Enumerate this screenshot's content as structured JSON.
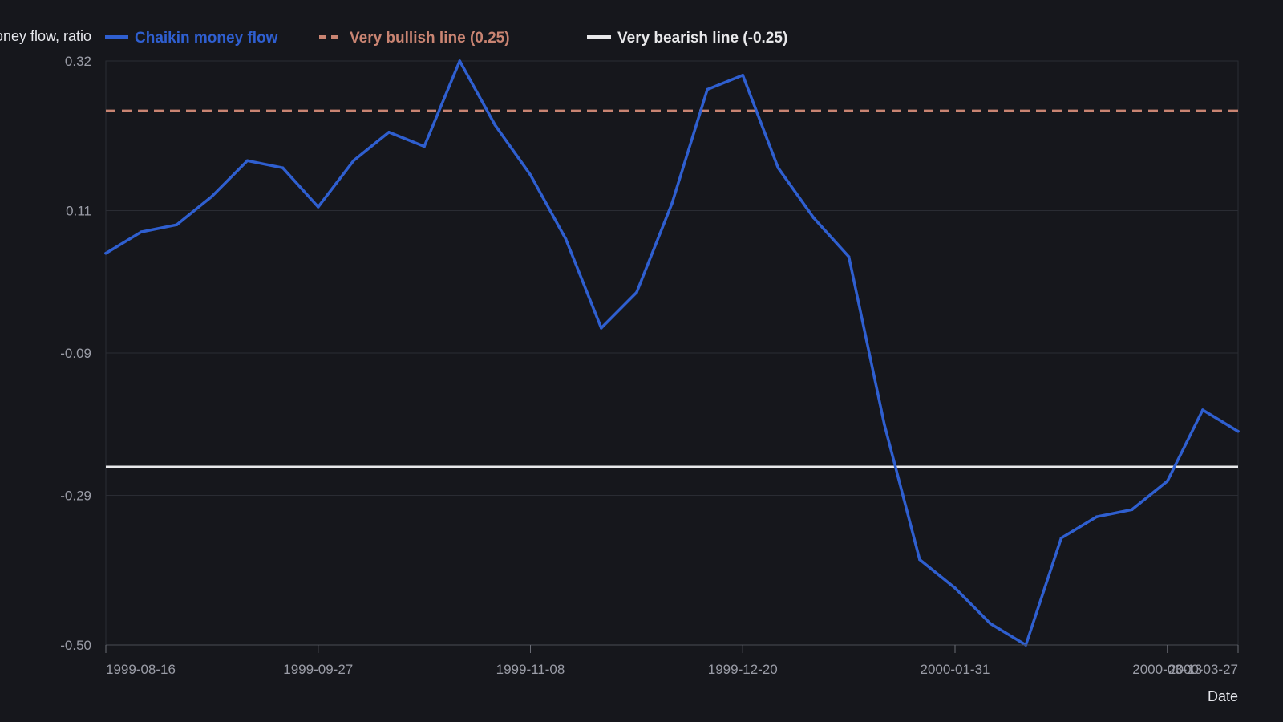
{
  "chart_data": {
    "type": "line",
    "ylabel": "Chaikin money flow, ratio",
    "xlabel": "Date",
    "ylim": [
      -0.5,
      0.32
    ],
    "yticks": [
      "0.32",
      "0.11",
      "-0.09",
      "-0.29",
      "-0.50"
    ],
    "ytick_values": [
      0.32,
      0.11,
      -0.09,
      -0.29,
      -0.5
    ],
    "xticks": [
      "1999-08-16",
      "1999-09-27",
      "1999-11-08",
      "1999-12-20",
      "2000-01-31",
      "2000-03-13",
      "2000-03-27"
    ],
    "xtick_indices": [
      0,
      6,
      12,
      18,
      24,
      30,
      32
    ],
    "grid": true,
    "legend_position": "top",
    "x": [
      "1999-08-16",
      "1999-08-23",
      "1999-08-30",
      "1999-09-06",
      "1999-09-13",
      "1999-09-20",
      "1999-09-27",
      "1999-10-04",
      "1999-10-11",
      "1999-10-18",
      "1999-10-25",
      "1999-11-01",
      "1999-11-08",
      "1999-11-15",
      "1999-11-22",
      "1999-11-29",
      "1999-12-06",
      "1999-12-13",
      "1999-12-20",
      "1999-12-27",
      "2000-01-03",
      "2000-01-10",
      "2000-01-17",
      "2000-01-24",
      "2000-01-31",
      "2000-02-07",
      "2000-02-14",
      "2000-02-21",
      "2000-02-28",
      "2000-03-06",
      "2000-03-13",
      "2000-03-20",
      "2000-03-27"
    ],
    "series": [
      {
        "name": "Chaikin money flow",
        "color": "#2f5fd0",
        "style": "solid",
        "values": [
          0.05,
          0.08,
          0.09,
          0.13,
          0.18,
          0.17,
          0.115,
          0.18,
          0.22,
          0.2,
          0.32,
          0.23,
          0.16,
          0.07,
          -0.055,
          -0.005,
          0.12,
          0.28,
          0.3,
          0.17,
          0.1,
          0.045,
          -0.19,
          -0.38,
          -0.42,
          -0.47,
          -0.5,
          -0.35,
          -0.32,
          -0.31,
          -0.27,
          -0.17,
          -0.2
        ]
      },
      {
        "name": "Very bullish line (0.25)",
        "color": "#c98472",
        "style": "dashed",
        "constant": 0.25
      },
      {
        "name": "Very bearish line (-0.25)",
        "color": "#e8e8ea",
        "style": "solid",
        "constant": -0.25
      }
    ]
  }
}
